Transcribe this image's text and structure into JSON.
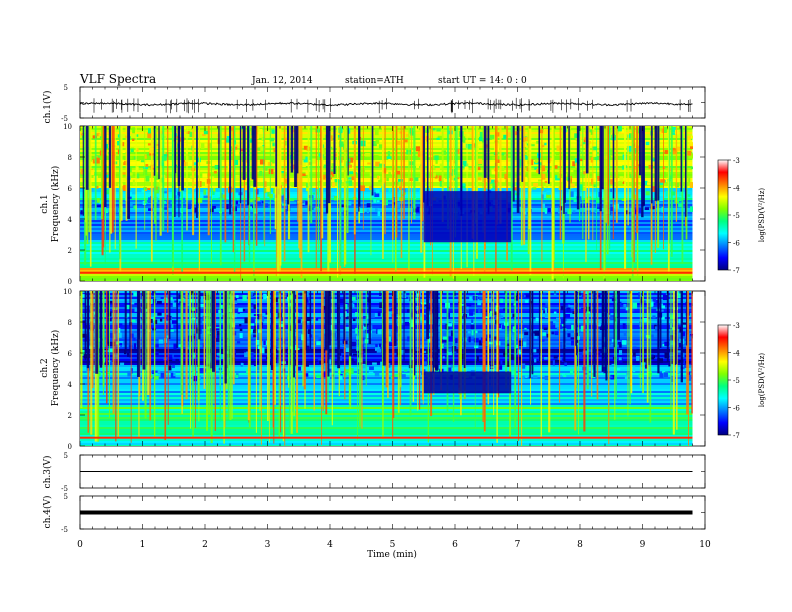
{
  "header": {
    "title": "VLF  Spectra",
    "date": "Jan. 12, 2014",
    "station": "station=ATH",
    "start": "start  UT  =   14: 0  : 0"
  },
  "colorbar": {
    "ticks": [
      "-3",
      "-4",
      "-5",
      "-6",
      "-7"
    ],
    "label": "log(PSD(V²/Hz)",
    "colors": [
      "#000080",
      "#0000ff",
      "#0080ff",
      "#00ffff",
      "#00ff80",
      "#80ff00",
      "#ffff00",
      "#ff8000",
      "#ff0000",
      "#ffffff"
    ]
  },
  "chart_data": [
    {
      "type": "line",
      "panel": "ch1-waveform",
      "ylabel": "ch.1(V)",
      "ylim": [
        -5,
        5
      ],
      "y_ticks": [
        "5",
        "-5"
      ],
      "xlim": [
        0,
        10
      ],
      "visible_range_min": [
        0,
        9.8
      ],
      "description_values": {
        "baseline": -0.5,
        "amplitude_range": [
          -2,
          0.5
        ]
      }
    },
    {
      "type": "heatmap",
      "panel": "ch1-spectrogram",
      "ylabel_top": "ch.1",
      "ylabel": "Frequency  (kHz)",
      "ylim": [
        0,
        10
      ],
      "y_ticks": [
        "0",
        "2",
        "4",
        "6",
        "8",
        "10"
      ],
      "xlim": [
        0,
        10
      ],
      "clim": [
        -7,
        -3
      ],
      "bands": [
        {
          "f_min": 6.0,
          "f_max": 10.0,
          "logpsd": -4.6
        },
        {
          "f_min": 5.2,
          "f_max": 6.0,
          "logpsd": -5.6
        },
        {
          "f_min": 2.5,
          "f_max": 5.2,
          "logpsd": -6.1
        },
        {
          "f_min": 0.8,
          "f_max": 2.5,
          "logpsd": -5.3
        },
        {
          "f_min": 0.3,
          "f_max": 0.8,
          "logpsd": -4.2
        },
        {
          "f_min": 0.0,
          "f_max": 0.3,
          "logpsd": -4.8
        }
      ],
      "quiet_region": {
        "t_min": 5.5,
        "t_max": 6.9,
        "f_min": 2.5,
        "f_max": 5.8,
        "logpsd": -6.8
      }
    },
    {
      "type": "heatmap",
      "panel": "ch2-spectrogram",
      "ylabel_top": "ch.2",
      "ylabel": "Frequency  (kHz)",
      "ylim": [
        0,
        10
      ],
      "y_ticks": [
        "0",
        "2",
        "4",
        "6",
        "8",
        "10"
      ],
      "xlim": [
        0,
        10
      ],
      "clim": [
        -7,
        -3
      ],
      "bands": [
        {
          "f_min": 6.2,
          "f_max": 10.0,
          "logpsd": -6.2
        },
        {
          "f_min": 5.2,
          "f_max": 6.2,
          "logpsd": -6.6
        },
        {
          "f_min": 2.5,
          "f_max": 5.2,
          "logpsd": -5.8
        },
        {
          "f_min": 0.8,
          "f_max": 2.5,
          "logpsd": -5.2
        },
        {
          "f_min": 0.0,
          "f_max": 0.8,
          "logpsd": -5.5
        }
      ],
      "quiet_region": {
        "t_min": 5.5,
        "t_max": 6.9,
        "f_min": 3.4,
        "f_max": 4.8,
        "logpsd": -6.9
      }
    },
    {
      "type": "line",
      "panel": "ch3-waveform",
      "ylabel": "ch.3(V)",
      "ylim": [
        -5,
        5
      ],
      "y_ticks": [
        "5",
        "-5"
      ],
      "xlim": [
        0,
        10
      ],
      "constant_level": 0
    },
    {
      "type": "line",
      "panel": "ch4-waveform",
      "ylabel": "ch.4(V)",
      "ylim": [
        -5,
        5
      ],
      "y_ticks": [
        "5",
        "-5"
      ],
      "xlim": [
        0,
        10
      ],
      "constant_level": 0,
      "xlabel": "Time  (min)",
      "x_ticks": [
        "0",
        "1",
        "2",
        "3",
        "4",
        "5",
        "6",
        "7",
        "8",
        "9",
        "10"
      ]
    }
  ]
}
